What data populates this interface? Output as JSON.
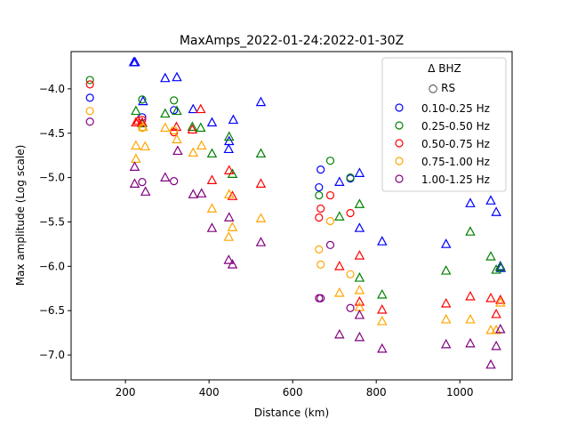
{
  "chart_data": {
    "type": "scatter",
    "title": "MaxAmps_2022-01-24:2022-01-30Z",
    "xlabel": "Distance (km)",
    "ylabel": "Max amplitude (Log scale)",
    "xlim": [
      70,
      1125
    ],
    "ylim": [
      -7.28,
      -3.58
    ],
    "xticks": [
      200,
      400,
      600,
      800,
      1000
    ],
    "yticks": [
      -4.0,
      -4.5,
      -5.0,
      -5.5,
      -6.0,
      -6.5,
      -7.0
    ],
    "xtick_labels": [
      "200",
      "400",
      "600",
      "800",
      "1000"
    ],
    "ytick_labels": [
      "−4.0",
      "−4.5",
      "−5.0",
      "−5.5",
      "−6.0",
      "−6.5",
      "−7.0"
    ],
    "grid": false,
    "legend": {
      "placement": "top-right",
      "marker_entries": [
        {
          "label": "Δ BHZ",
          "marker": "triangle"
        },
        {
          "label": "○ RS",
          "marker": "circle"
        }
      ],
      "series_labels": [
        "0.10-0.25 Hz",
        "0.25-0.50 Hz",
        "0.50-0.75 Hz",
        "0.75-1.00 Hz",
        "1.00-1.25 Hz"
      ]
    },
    "series": [
      {
        "name": "0.10-0.25 Hz",
        "color": "#0000ff",
        "triangles": [
          [
            220,
            -3.7
          ],
          [
            223,
            -3.7
          ],
          [
            295,
            -3.88
          ],
          [
            323,
            -3.87
          ],
          [
            242,
            -4.14
          ],
          [
            362,
            -4.23
          ],
          [
            407,
            -4.38
          ],
          [
            448,
            -4.59
          ],
          [
            447,
            -4.68
          ],
          [
            458,
            -4.35
          ],
          [
            524,
            -4.15
          ],
          [
            712,
            -5.05
          ],
          [
            760,
            -4.95
          ],
          [
            760,
            -5.57
          ],
          [
            814,
            -5.72
          ],
          [
            967,
            -5.75
          ],
          [
            1025,
            -5.29
          ],
          [
            1074,
            -5.26
          ],
          [
            1087,
            -5.39
          ],
          [
            1097,
            -6.0
          ],
          [
            1098,
            -6.02
          ]
        ],
        "circles": [
          [
            115,
            -4.1
          ],
          [
            240,
            -4.32
          ],
          [
            316,
            -4.24
          ],
          [
            663,
            -5.11
          ],
          [
            667,
            -4.91
          ],
          [
            738,
            -5.01
          ]
        ]
      },
      {
        "name": "0.25-0.50 Hz",
        "color": "#008000",
        "triangles": [
          [
            225,
            -4.25
          ],
          [
            240,
            -4.39
          ],
          [
            295,
            -4.28
          ],
          [
            323,
            -4.25
          ],
          [
            360,
            -4.43
          ],
          [
            380,
            -4.44
          ],
          [
            407,
            -4.73
          ],
          [
            448,
            -4.54
          ],
          [
            456,
            -4.96
          ],
          [
            524,
            -4.73
          ],
          [
            712,
            -5.44
          ],
          [
            760,
            -5.3
          ],
          [
            760,
            -6.13
          ],
          [
            814,
            -6.32
          ],
          [
            967,
            -6.05
          ],
          [
            1025,
            -5.61
          ],
          [
            1074,
            -5.89
          ],
          [
            1087,
            -6.04
          ],
          [
            1097,
            -6.01
          ]
        ],
        "circles": [
          [
            115,
            -3.9
          ],
          [
            240,
            -4.12
          ],
          [
            316,
            -4.13
          ],
          [
            663,
            -5.2
          ],
          [
            690,
            -4.81
          ],
          [
            738,
            -5.0
          ]
        ]
      },
      {
        "name": "0.50-0.75 Hz",
        "color": "#ff0000",
        "triangles": [
          [
            225,
            -4.38
          ],
          [
            230,
            -4.36
          ],
          [
            240,
            -4.38
          ],
          [
            322,
            -4.43
          ],
          [
            360,
            -4.46
          ],
          [
            380,
            -4.23
          ],
          [
            407,
            -5.03
          ],
          [
            448,
            -4.92
          ],
          [
            456,
            -5.21
          ],
          [
            524,
            -5.07
          ],
          [
            712,
            -6.0
          ],
          [
            760,
            -5.88
          ],
          [
            760,
            -6.4
          ],
          [
            814,
            -6.49
          ],
          [
            967,
            -6.42
          ],
          [
            1025,
            -6.34
          ],
          [
            1074,
            -6.36
          ],
          [
            1087,
            -6.54
          ],
          [
            1097,
            -6.38
          ]
        ],
        "circles": [
          [
            115,
            -3.95
          ],
          [
            240,
            -4.35
          ],
          [
            316,
            -4.49
          ],
          [
            663,
            -5.45
          ],
          [
            667,
            -5.35
          ],
          [
            690,
            -5.2
          ],
          [
            738,
            -5.4
          ]
        ]
      },
      {
        "name": "0.75-1.00 Hz",
        "color": "#ffa500",
        "triangles": [
          [
            225,
            -4.64
          ],
          [
            225,
            -4.79
          ],
          [
            242,
            -4.43
          ],
          [
            247,
            -4.65
          ],
          [
            295,
            -4.44
          ],
          [
            323,
            -4.57
          ],
          [
            362,
            -4.72
          ],
          [
            382,
            -4.64
          ],
          [
            407,
            -5.35
          ],
          [
            448,
            -5.19
          ],
          [
            447,
            -5.67
          ],
          [
            456,
            -5.56
          ],
          [
            524,
            -5.46
          ],
          [
            712,
            -6.3
          ],
          [
            760,
            -6.27
          ],
          [
            760,
            -6.46
          ],
          [
            814,
            -6.62
          ],
          [
            967,
            -6.6
          ],
          [
            1025,
            -6.6
          ],
          [
            1074,
            -6.72
          ],
          [
            1087,
            -6.72
          ],
          [
            1097,
            -6.41
          ]
        ],
        "circles": [
          [
            115,
            -4.25
          ],
          [
            240,
            -4.44
          ],
          [
            316,
            -4.47
          ],
          [
            663,
            -5.81
          ],
          [
            667,
            -5.98
          ],
          [
            690,
            -5.49
          ],
          [
            738,
            -6.09
          ]
        ]
      },
      {
        "name": "1.00-1.25 Hz",
        "color": "#800080",
        "triangles": [
          [
            222,
            -4.88
          ],
          [
            222,
            -5.07
          ],
          [
            248,
            -5.16
          ],
          [
            295,
            -5.0
          ],
          [
            325,
            -4.7
          ],
          [
            362,
            -5.19
          ],
          [
            382,
            -5.18
          ],
          [
            407,
            -5.57
          ],
          [
            448,
            -5.45
          ],
          [
            447,
            -5.93
          ],
          [
            456,
            -5.98
          ],
          [
            524,
            -5.73
          ],
          [
            712,
            -6.77
          ],
          [
            760,
            -6.55
          ],
          [
            760,
            -6.8
          ],
          [
            814,
            -6.93
          ],
          [
            967,
            -6.88
          ],
          [
            1025,
            -6.87
          ],
          [
            1074,
            -7.11
          ],
          [
            1087,
            -6.9
          ],
          [
            1097,
            -6.71
          ]
        ],
        "circles": [
          [
            115,
            -4.37
          ],
          [
            240,
            -5.05
          ],
          [
            316,
            -5.04
          ],
          [
            663,
            -6.36
          ],
          [
            667,
            -6.36
          ],
          [
            690,
            -5.76
          ],
          [
            738,
            -6.47
          ]
        ]
      }
    ]
  }
}
